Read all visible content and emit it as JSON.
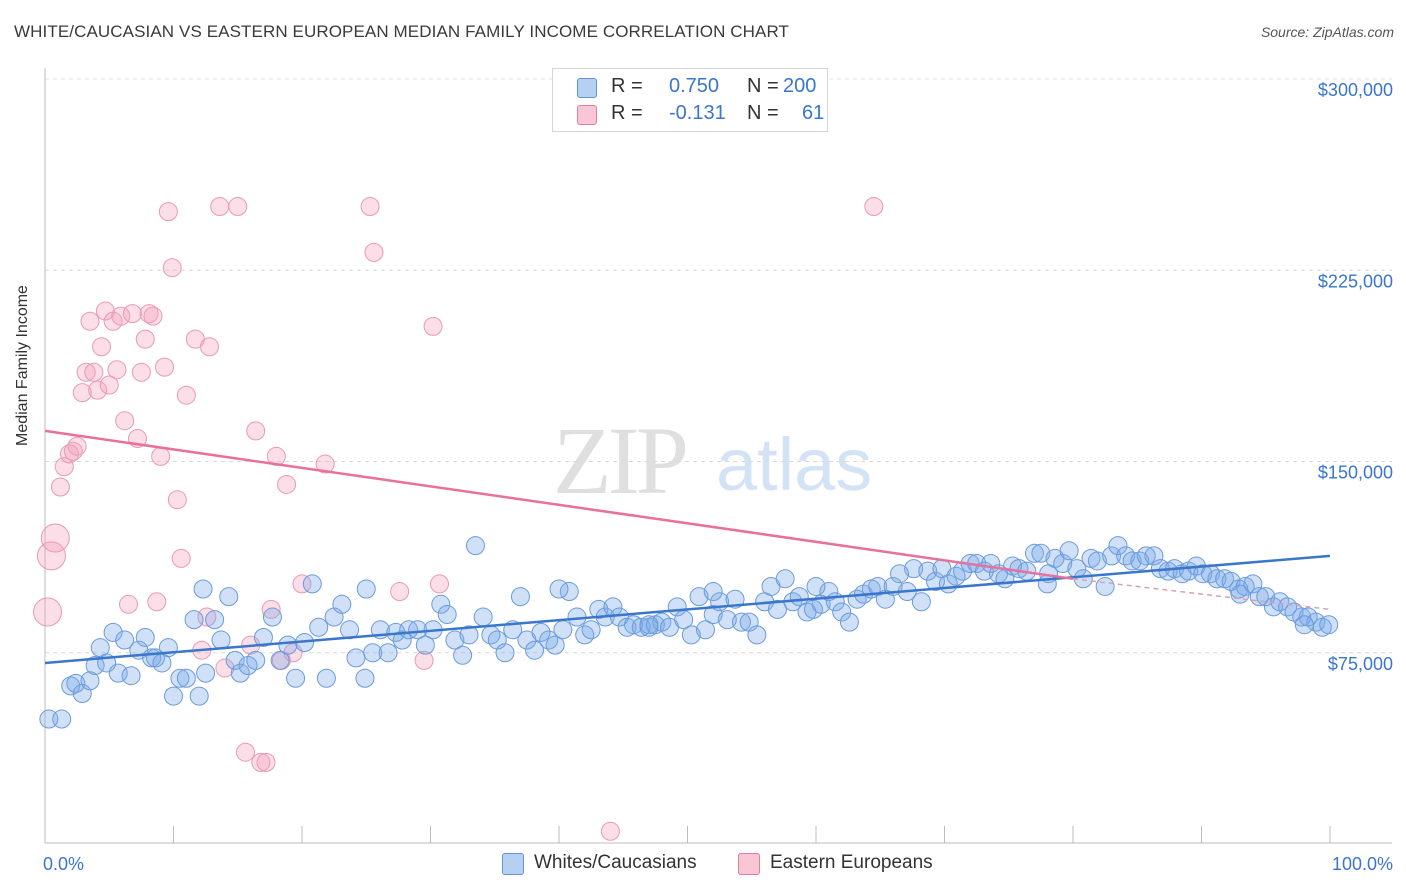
{
  "title": "WHITE/CAUCASIAN VS EASTERN EUROPEAN MEDIAN FAMILY INCOME CORRELATION CHART",
  "source": "Source: ZipAtlas.com",
  "watermark": {
    "zip": "ZIP",
    "atlas": "atlas"
  },
  "legend_top": {
    "rows": [
      {
        "r_label": "R =",
        "r_value": "0.750",
        "n_label": "N =",
        "n_value": "200",
        "color": "#a8c8f0",
        "border": "#5f95d8"
      },
      {
        "r_label": "R =",
        "r_value": "-0.131",
        "n_label": "N =",
        "n_value": "61",
        "color": "#f7bcd0",
        "border": "#e07da0"
      }
    ]
  },
  "legend_bottom": [
    {
      "label": "Whites/Caucasians",
      "color": "#b6d0f2",
      "border": "#5f95d8"
    },
    {
      "label": "Eastern Europeans",
      "color": "#f9c6d6",
      "border": "#e07da0"
    }
  ],
  "chart_data": {
    "type": "scatter",
    "title": "WHITE/CAUCASIAN VS EASTERN EUROPEAN MEDIAN FAMILY INCOME CORRELATION CHART",
    "xlabel": "",
    "ylabel": "Median Family Income",
    "x_tick_labels": [
      "0.0%",
      "100.0%"
    ],
    "y_tick_labels": [
      "$75,000",
      "$150,000",
      "$225,000",
      "$300,000"
    ],
    "y_ticks": [
      75000,
      150000,
      225000,
      300000
    ],
    "xlim": [
      0,
      100
    ],
    "ylim": [
      0,
      310000
    ],
    "grid": true,
    "colors": {
      "blue": "#3a76cc",
      "pink": "#e8709a",
      "blue_fill": "rgba(120,168,232,0.35)",
      "pink_fill": "rgba(244,160,188,0.35)"
    },
    "series": [
      {
        "name": "Whites/Caucasians",
        "color": "#5f95d8",
        "trend": {
          "x": [
            0,
            100
          ],
          "y": [
            71000,
            113000
          ]
        },
        "points": [
          [
            0.3,
            49000
          ],
          [
            1.3,
            49000
          ],
          [
            2.0,
            62000
          ],
          [
            2.4,
            63000
          ],
          [
            2.9,
            59000
          ],
          [
            3.5,
            64000
          ],
          [
            3.9,
            70000
          ],
          [
            4.3,
            77000
          ],
          [
            4.8,
            71000
          ],
          [
            5.3,
            83000
          ],
          [
            5.7,
            67000
          ],
          [
            6.2,
            80000
          ],
          [
            6.7,
            66000
          ],
          [
            7.3,
            76000
          ],
          [
            7.8,
            81000
          ],
          [
            8.3,
            73000
          ],
          [
            8.6,
            73000
          ],
          [
            9.1,
            71000
          ],
          [
            9.6,
            77000
          ],
          [
            10.0,
            58000
          ],
          [
            10.5,
            65000
          ],
          [
            11.0,
            65000
          ],
          [
            11.6,
            88000
          ],
          [
            12.0,
            58000
          ],
          [
            12.5,
            67000
          ],
          [
            13.2,
            88000
          ],
          [
            13.7,
            80000
          ],
          [
            14.3,
            97000
          ],
          [
            14.8,
            72000
          ],
          [
            15.2,
            67000
          ],
          [
            15.8,
            70000
          ],
          [
            16.4,
            72000
          ],
          [
            17.0,
            81000
          ],
          [
            17.7,
            89000
          ],
          [
            18.3,
            72000
          ],
          [
            18.9,
            78000
          ],
          [
            19.5,
            65000
          ],
          [
            20.2,
            79000
          ],
          [
            20.8,
            102000
          ],
          [
            21.3,
            85000
          ],
          [
            21.9,
            65000
          ],
          [
            22.5,
            89000
          ],
          [
            23.1,
            94000
          ],
          [
            23.7,
            84000
          ],
          [
            24.2,
            73000
          ],
          [
            24.9,
            65000
          ],
          [
            25.5,
            75000
          ],
          [
            26.1,
            84000
          ],
          [
            26.7,
            75000
          ],
          [
            27.3,
            83000
          ],
          [
            27.8,
            80000
          ],
          [
            28.3,
            84000
          ],
          [
            29.0,
            84000
          ],
          [
            29.6,
            78000
          ],
          [
            30.2,
            84000
          ],
          [
            30.8,
            94000
          ],
          [
            31.3,
            90000
          ],
          [
            31.9,
            80000
          ],
          [
            32.5,
            74000
          ],
          [
            33.0,
            82000
          ],
          [
            33.5,
            117000
          ],
          [
            34.1,
            89000
          ],
          [
            34.7,
            82000
          ],
          [
            35.2,
            80000
          ],
          [
            35.8,
            75000
          ],
          [
            36.4,
            84000
          ],
          [
            37.0,
            97000
          ],
          [
            37.5,
            80000
          ],
          [
            38.1,
            76000
          ],
          [
            38.6,
            83000
          ],
          [
            39.2,
            80000
          ],
          [
            39.7,
            78000
          ],
          [
            40.3,
            84000
          ],
          [
            40.8,
            99000
          ],
          [
            41.4,
            89000
          ],
          [
            42.0,
            82000
          ],
          [
            42.5,
            84000
          ],
          [
            43.1,
            92000
          ],
          [
            43.6,
            89000
          ],
          [
            44.2,
            93000
          ],
          [
            44.7,
            89000
          ],
          [
            45.3,
            85000
          ],
          [
            45.8,
            86000
          ],
          [
            46.4,
            85000
          ],
          [
            47.0,
            85000
          ],
          [
            47.5,
            86000
          ],
          [
            48.0,
            87000
          ],
          [
            48.6,
            85000
          ],
          [
            49.2,
            93000
          ],
          [
            49.7,
            88000
          ],
          [
            50.3,
            82000
          ],
          [
            50.9,
            97000
          ],
          [
            51.4,
            84000
          ],
          [
            52.0,
            90000
          ],
          [
            52.5,
            95000
          ],
          [
            53.1,
            88000
          ],
          [
            53.7,
            96000
          ],
          [
            54.2,
            87000
          ],
          [
            54.8,
            87000
          ],
          [
            55.4,
            82000
          ],
          [
            56.0,
            95000
          ],
          [
            56.5,
            101000
          ],
          [
            57.0,
            92000
          ],
          [
            57.6,
            104000
          ],
          [
            58.2,
            95000
          ],
          [
            58.7,
            97000
          ],
          [
            59.3,
            91000
          ],
          [
            59.8,
            92000
          ],
          [
            60.4,
            94000
          ],
          [
            61.0,
            99000
          ],
          [
            61.5,
            95000
          ],
          [
            62.0,
            91000
          ],
          [
            62.6,
            87000
          ],
          [
            63.2,
            96000
          ],
          [
            63.7,
            98000
          ],
          [
            64.3,
            100000
          ],
          [
            64.8,
            101000
          ],
          [
            65.4,
            96000
          ],
          [
            66.0,
            101000
          ],
          [
            66.5,
            106000
          ],
          [
            67.1,
            99000
          ],
          [
            67.6,
            108000
          ],
          [
            68.2,
            95000
          ],
          [
            68.7,
            107000
          ],
          [
            69.3,
            103000
          ],
          [
            69.8,
            108000
          ],
          [
            70.3,
            102000
          ],
          [
            70.9,
            105000
          ],
          [
            71.4,
            107000
          ],
          [
            72.0,
            110000
          ],
          [
            72.5,
            110000
          ],
          [
            73.1,
            107000
          ],
          [
            73.6,
            110000
          ],
          [
            74.2,
            106000
          ],
          [
            74.7,
            104000
          ],
          [
            75.3,
            109000
          ],
          [
            75.8,
            108000
          ],
          [
            76.4,
            107000
          ],
          [
            77.0,
            114000
          ],
          [
            77.5,
            114000
          ],
          [
            78.1,
            106000
          ],
          [
            78.6,
            112000
          ],
          [
            79.2,
            110000
          ],
          [
            79.7,
            115000
          ],
          [
            80.3,
            108000
          ],
          [
            80.8,
            104000
          ],
          [
            81.4,
            112000
          ],
          [
            81.9,
            111000
          ],
          [
            82.5,
            101000
          ],
          [
            83.0,
            113000
          ],
          [
            83.5,
            117000
          ],
          [
            84.1,
            113000
          ],
          [
            84.6,
            111000
          ],
          [
            85.2,
            111000
          ],
          [
            85.7,
            113000
          ],
          [
            86.3,
            113000
          ],
          [
            86.8,
            108000
          ],
          [
            87.4,
            107000
          ],
          [
            87.9,
            108000
          ],
          [
            88.5,
            106000
          ],
          [
            89.0,
            107000
          ],
          [
            89.6,
            109000
          ],
          [
            90.1,
            106000
          ],
          [
            90.7,
            106000
          ],
          [
            91.2,
            104000
          ],
          [
            91.8,
            104000
          ],
          [
            92.3,
            103000
          ],
          [
            92.9,
            100000
          ],
          [
            93.4,
            101000
          ],
          [
            94.0,
            102000
          ],
          [
            94.5,
            97000
          ],
          [
            95.0,
            97000
          ],
          [
            95.6,
            93000
          ],
          [
            96.1,
            95000
          ],
          [
            96.7,
            93000
          ],
          [
            97.2,
            91000
          ],
          [
            97.8,
            89000
          ],
          [
            98.3,
            89000
          ],
          [
            98.9,
            87000
          ],
          [
            99.4,
            85000
          ],
          [
            99.9,
            86000
          ],
          [
            12.3,
            100000
          ],
          [
            25.0,
            100000
          ],
          [
            40.0,
            100000
          ],
          [
            47.0,
            86000
          ],
          [
            52.0,
            99000
          ],
          [
            60.0,
            101000
          ],
          [
            78.0,
            102000
          ],
          [
            93.0,
            98000
          ],
          [
            98.0,
            86000
          ]
        ]
      },
      {
        "name": "Eastern Europeans",
        "color": "#e07da0",
        "trend": {
          "x": [
            0,
            80
          ],
          "y": [
            162000,
            104000
          ]
        },
        "dashed_extension": {
          "x": [
            80,
            100
          ],
          "y": [
            104000,
            92000
          ]
        },
        "points": [
          [
            0.2,
            91000
          ],
          [
            0.5,
            113000
          ],
          [
            0.8,
            120000
          ],
          [
            1.2,
            140000
          ],
          [
            1.5,
            148000
          ],
          [
            1.9,
            153000
          ],
          [
            2.2,
            154000
          ],
          [
            2.5,
            156000
          ],
          [
            2.9,
            177000
          ],
          [
            3.2,
            185000
          ],
          [
            3.5,
            205000
          ],
          [
            3.8,
            185000
          ],
          [
            4.1,
            178000
          ],
          [
            4.4,
            195000
          ],
          [
            4.7,
            209000
          ],
          [
            5.0,
            180000
          ],
          [
            5.3,
            205000
          ],
          [
            5.6,
            186000
          ],
          [
            5.9,
            207000
          ],
          [
            6.2,
            166000
          ],
          [
            6.5,
            94000
          ],
          [
            6.8,
            208000
          ],
          [
            7.2,
            159000
          ],
          [
            7.5,
            185000
          ],
          [
            7.8,
            198000
          ],
          [
            8.1,
            208000
          ],
          [
            8.4,
            207000
          ],
          [
            8.7,
            95000
          ],
          [
            9.0,
            152000
          ],
          [
            9.3,
            187000
          ],
          [
            9.6,
            248000
          ],
          [
            9.9,
            226000
          ],
          [
            10.3,
            135000
          ],
          [
            10.6,
            112000
          ],
          [
            11.0,
            176000
          ],
          [
            11.7,
            198000
          ],
          [
            12.2,
            76000
          ],
          [
            12.6,
            89000
          ],
          [
            12.8,
            195000
          ],
          [
            13.6,
            250000
          ],
          [
            14.0,
            69000
          ],
          [
            15.0,
            250000
          ],
          [
            15.6,
            36000
          ],
          [
            16.0,
            78000
          ],
          [
            16.4,
            162000
          ],
          [
            16.8,
            32000
          ],
          [
            17.2,
            32000
          ],
          [
            17.6,
            92000
          ],
          [
            18.0,
            152000
          ],
          [
            18.4,
            72000
          ],
          [
            18.8,
            141000
          ],
          [
            19.3,
            75000
          ],
          [
            20.0,
            102000
          ],
          [
            21.8,
            149000
          ],
          [
            25.3,
            250000
          ],
          [
            25.6,
            232000
          ],
          [
            27.6,
            99000
          ],
          [
            29.5,
            72000
          ],
          [
            30.2,
            203000
          ],
          [
            30.7,
            102000
          ],
          [
            44.0,
            5000
          ],
          [
            64.5,
            250000
          ]
        ]
      }
    ]
  }
}
